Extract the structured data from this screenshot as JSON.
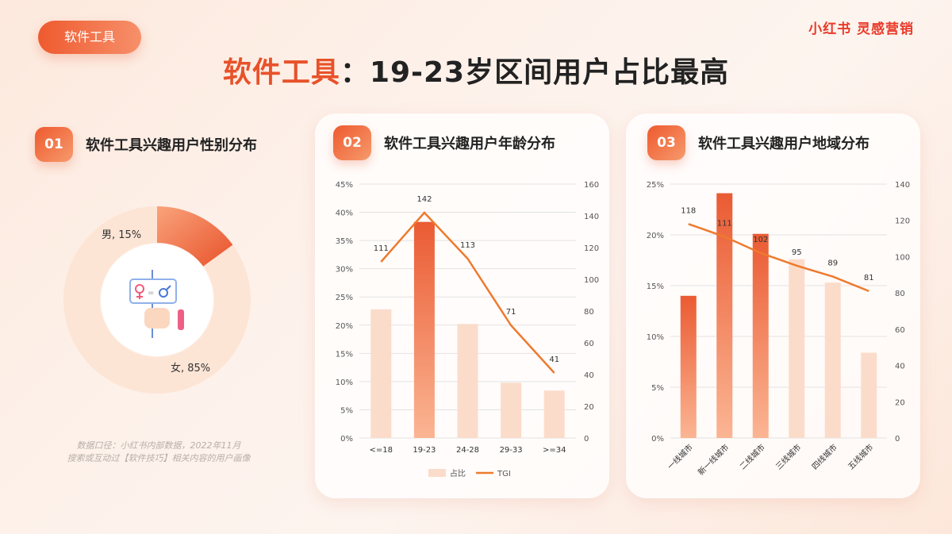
{
  "header": {
    "tag": "软件工具",
    "brand": "小红书 灵感营销",
    "title_highlight": "软件工具",
    "title_rest": "：19-23岁区间用户占比最高"
  },
  "sections": [
    {
      "num": "01",
      "title": "软件工具兴趣用户性别分布"
    },
    {
      "num": "02",
      "title": "软件工具兴趣用户年龄分布"
    },
    {
      "num": "03",
      "title": "软件工具兴趣用户地域分布"
    }
  ],
  "footnote": {
    "line1": "数据口径：小红书内部数据，2022年11月",
    "line2": "搜索或互动过【软件技巧】相关内容的用户画像"
  },
  "colors": {
    "accent": "#e8522a",
    "bar_highlight": "#ea5b33",
    "bar_light": "#fbdcca",
    "line": "#ee7a2e",
    "donut_light": "#fde5d6"
  },
  "chart_data": [
    {
      "type": "pie",
      "variant": "donut",
      "categories": [
        "男",
        "女"
      ],
      "values": [
        15,
        85
      ],
      "labels": [
        "男, 15%",
        "女, 85%"
      ],
      "center_icon": "gender-sign-icon"
    },
    {
      "type": "bar",
      "categories": [
        "<=18",
        "19-23",
        "24-28",
        "29-33",
        ">=34"
      ],
      "series": [
        {
          "name": "占比",
          "type": "bar",
          "axis": "left",
          "values": [
            22.8,
            38.3,
            20.2,
            9.8,
            8.4
          ]
        },
        {
          "name": "TGI",
          "type": "line",
          "axis": "right",
          "values": [
            111,
            142,
            113,
            71,
            41
          ]
        }
      ],
      "highlight_index": 1,
      "y_left": {
        "min": 0,
        "max": 45,
        "step": 5,
        "format": "percent"
      },
      "y_right": {
        "min": 0,
        "max": 160,
        "step": 20
      },
      "legend": [
        "占比",
        "TGI"
      ],
      "legend_position": "bottom",
      "grid": true
    },
    {
      "type": "bar",
      "categories": [
        "一线城市",
        "新一线城市",
        "二线城市",
        "三线城市",
        "四线城市",
        "五线城市"
      ],
      "series": [
        {
          "name": "占比",
          "type": "bar",
          "axis": "left",
          "values": [
            14.0,
            24.1,
            20.1,
            17.6,
            15.3,
            8.4
          ]
        },
        {
          "name": "TGI",
          "type": "line",
          "axis": "right",
          "values": [
            118,
            111,
            102,
            95,
            89,
            81
          ]
        }
      ],
      "highlight_indices": [
        0,
        1,
        2
      ],
      "y_left": {
        "min": 0,
        "max": 25,
        "step": 5,
        "format": "percent"
      },
      "y_right": {
        "min": 0,
        "max": 140,
        "step": 20
      },
      "grid": true
    }
  ]
}
